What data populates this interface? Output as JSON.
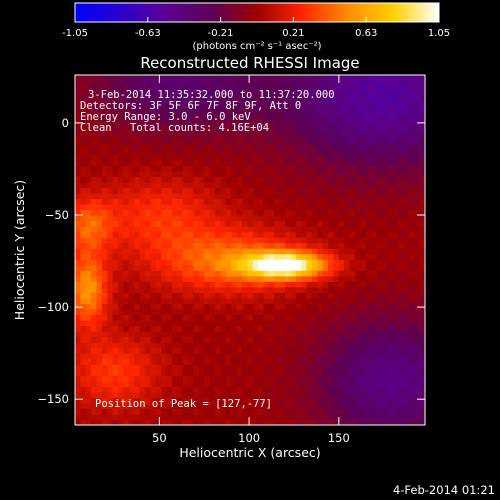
{
  "chart_data": {
    "type": "heatmap",
    "title": "Reconstructed RHESSI Image",
    "xlabel": "Heliocentric X (arcsec)",
    "ylabel": "Heliocentric Y (arcsec)",
    "xlim": [
      3,
      198
    ],
    "ylim": [
      -164,
      26
    ],
    "x_ticks": [
      50,
      100,
      150
    ],
    "y_ticks": [
      0,
      -50,
      -100,
      -150
    ],
    "colorbar": {
      "range": [
        -1.05,
        1.05
      ],
      "ticks": [
        "-1.05",
        "-0.63",
        "-0.21",
        "0.21",
        "0.63",
        "1.05"
      ],
      "label": "(photons cm⁻² s⁻¹ asec⁻²)",
      "colormap": [
        "#0000ff",
        "#2a00d0",
        "#5a0095",
        "#5e0054",
        "#9d0000",
        "#ff2600",
        "#ff8c00",
        "#ffd000",
        "#ffffff"
      ]
    },
    "annotations": {
      "time_range": "3-Feb-2014 11:35:32.000 to 11:37:20.000",
      "detectors": "Detectors: 3F 5F 6F 7F 8F 9F, Att 0",
      "energy_range": "Energy Range: 3.0 - 6.0 keV",
      "clean_label": "Clean",
      "total_counts": "Total counts: 4.16E+04",
      "peak": "Position of Peak = [127,-77]"
    },
    "timestamp": "4-Feb-2014 01:21",
    "peak_position": [
      127,
      -77
    ],
    "sources": [
      {
        "x": 120,
        "y": -77,
        "sx": 16,
        "sy": 5,
        "amp": 1.0
      },
      {
        "x": 90,
        "y": -75,
        "sx": 30,
        "sy": 12,
        "amp": 0.45
      },
      {
        "x": 10,
        "y": -90,
        "sx": 8,
        "sy": 14,
        "amp": 0.55
      },
      {
        "x": 10,
        "y": -55,
        "sx": 10,
        "sy": 10,
        "amp": 0.35
      },
      {
        "x": 50,
        "y": -50,
        "sx": 25,
        "sy": 14,
        "amp": 0.28
      },
      {
        "x": 25,
        "y": -135,
        "sx": 18,
        "sy": 14,
        "amp": 0.3
      }
    ]
  }
}
